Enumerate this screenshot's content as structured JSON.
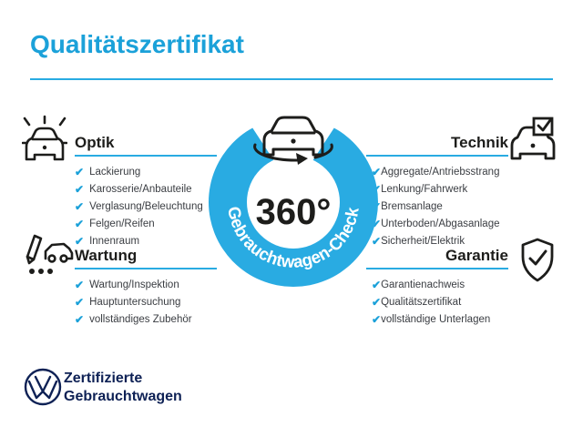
{
  "page": {
    "title": "Qualitätszertifikat"
  },
  "colors": {
    "accent_blue": "#1ba1d9",
    "ring_blue": "#29abe2",
    "dark_text": "#1d1d1b",
    "item_text": "#3a3d42",
    "vw_navy": "#0e2155"
  },
  "check_glyph": "✔",
  "medallion": {
    "center_label": "360°",
    "ring_label": "Gebrauchtwagen-Check",
    "icon": "rotating-car-icon"
  },
  "sections": [
    {
      "id": "optik",
      "title": "Optik",
      "icon": "car-shine-icon",
      "side": "left",
      "items": [
        "Lackierung",
        "Karosserie/Anbauteile",
        "Verglasung/Beleuchtung",
        "Felgen/Reifen",
        "Innenraum"
      ]
    },
    {
      "id": "wartung",
      "title": "Wartung",
      "icon": "checklist-car-icon",
      "side": "left",
      "items": [
        "Wartung/Inspektion",
        "Hauptuntersuchung",
        "vollständiges Zubehör"
      ]
    },
    {
      "id": "technik",
      "title": "Technik",
      "icon": "car-checkbox-icon",
      "side": "right",
      "items": [
        "Aggregate/Antriebsstrang",
        "Lenkung/Fahrwerk",
        "Bremsanlage",
        "Unterboden/Abgasanlage",
        "Sicherheit/Elektrik"
      ]
    },
    {
      "id": "garantie",
      "title": "Garantie",
      "icon": "shield-check-icon",
      "side": "right",
      "items": [
        "Garantienachweis",
        "Qualitätszertifikat",
        "vollständige Unterlagen"
      ]
    }
  ],
  "footer": {
    "logo": "vw-logo",
    "brand_line1": "Zertifizierte",
    "brand_line2": "Gebrauchtwagen"
  }
}
